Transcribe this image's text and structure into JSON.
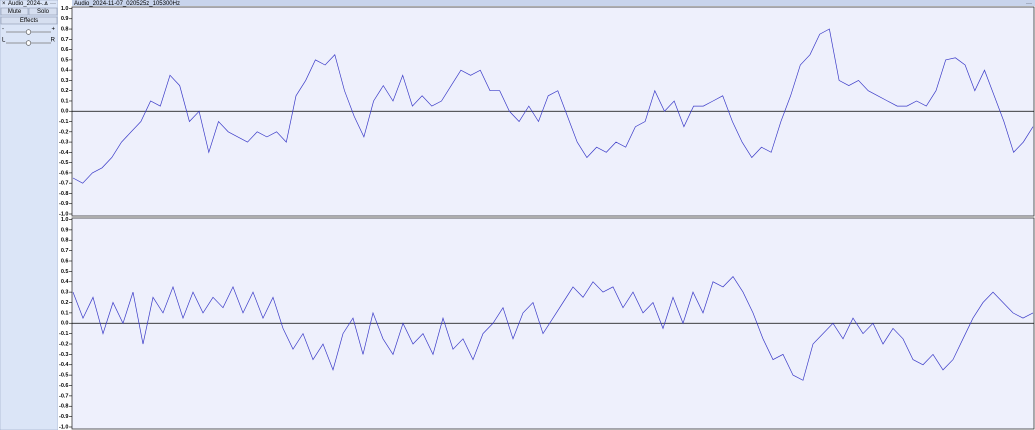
{
  "track": {
    "close": "×",
    "name": "Audio_2024-...",
    "collapse": "∧",
    "menu": "···",
    "title": "Audio_2024-11-07_020525z_105300Hz",
    "title_menu": "···"
  },
  "controls": {
    "mute": "Mute",
    "solo": "Solo",
    "effects": "Effects",
    "gain_min": "-",
    "gain_max": "+",
    "pan_left": "L",
    "pan_right": "R"
  },
  "channels": [
    {
      "ylim": [
        -1,
        1
      ],
      "yticks": [
        {
          "value": 1,
          "label": "1.0"
        },
        0.9,
        0.8,
        0.7,
        0.6,
        0.5,
        0.4,
        0.3,
        0.2,
        0.1,
        {
          "value": 0,
          "label": "0.0"
        },
        -0.1,
        -0.2,
        -0.3,
        -0.4,
        -0.5,
        -0.6,
        -0.7,
        -0.8,
        -0.9,
        {
          "value": -1,
          "label": "-1.0"
        }
      ],
      "values": [
        -0.65,
        -0.7,
        -0.6,
        -0.55,
        -0.45,
        -0.3,
        -0.2,
        -0.1,
        0.1,
        0.05,
        0.35,
        0.25,
        -0.1,
        0.0,
        -0.4,
        -0.1,
        -0.2,
        -0.25,
        -0.3,
        -0.2,
        -0.25,
        -0.2,
        -0.3,
        0.15,
        0.3,
        0.5,
        0.45,
        0.55,
        0.2,
        -0.05,
        -0.25,
        0.1,
        0.25,
        0.1,
        0.35,
        0.05,
        0.15,
        0.05,
        0.1,
        0.25,
        0.4,
        0.35,
        0.4,
        0.2,
        0.2,
        0.0,
        -0.1,
        0.05,
        -0.1,
        0.15,
        0.2,
        -0.05,
        -0.3,
        -0.45,
        -0.35,
        -0.4,
        -0.3,
        -0.35,
        -0.15,
        -0.1,
        0.2,
        0.0,
        0.1,
        -0.15,
        0.05,
        0.05,
        0.1,
        0.15,
        -0.1,
        -0.3,
        -0.45,
        -0.35,
        -0.4,
        -0.1,
        0.15,
        0.45,
        0.55,
        0.75,
        0.8,
        0.3,
        0.25,
        0.3,
        0.2,
        0.15,
        0.1,
        0.05,
        0.05,
        0.1,
        0.05,
        0.2,
        0.5,
        0.52,
        0.45,
        0.2,
        0.4,
        0.15,
        -0.1,
        -0.4,
        -0.3,
        -0.15
      ]
    },
    {
      "ylim": [
        -1,
        1
      ],
      "yticks": [
        {
          "value": 1,
          "label": "1.0"
        },
        0.9,
        0.8,
        0.7,
        0.6,
        0.5,
        0.4,
        0.3,
        0.2,
        0.1,
        {
          "value": 0,
          "label": "0.0"
        },
        -0.1,
        -0.2,
        -0.3,
        -0.4,
        -0.5,
        -0.6,
        -0.7,
        -0.8,
        -0.9,
        {
          "value": -1,
          "label": "-1.0"
        }
      ],
      "values": [
        0.3,
        0.05,
        0.25,
        -0.1,
        0.2,
        0.0,
        0.3,
        -0.2,
        0.25,
        0.1,
        0.35,
        0.05,
        0.3,
        0.1,
        0.25,
        0.15,
        0.35,
        0.1,
        0.3,
        0.05,
        0.25,
        -0.05,
        -0.25,
        -0.1,
        -0.35,
        -0.2,
        -0.45,
        -0.1,
        0.05,
        -0.3,
        0.1,
        -0.15,
        -0.3,
        0.0,
        -0.2,
        -0.1,
        -0.3,
        0.05,
        -0.25,
        -0.15,
        -0.35,
        -0.1,
        0.0,
        0.15,
        -0.15,
        0.1,
        0.2,
        -0.1,
        0.05,
        0.2,
        0.35,
        0.25,
        0.4,
        0.3,
        0.35,
        0.15,
        0.3,
        0.1,
        0.2,
        -0.05,
        0.25,
        0.0,
        0.3,
        0.1,
        0.4,
        0.35,
        0.45,
        0.3,
        0.1,
        -0.15,
        -0.35,
        -0.3,
        -0.5,
        -0.55,
        -0.2,
        -0.1,
        0.0,
        -0.15,
        0.05,
        -0.1,
        0.0,
        -0.2,
        -0.05,
        -0.15,
        -0.35,
        -0.4,
        -0.3,
        -0.45,
        -0.35,
        -0.15,
        0.05,
        0.2,
        0.3,
        0.2,
        0.1,
        0.05,
        0.1
      ]
    }
  ]
}
